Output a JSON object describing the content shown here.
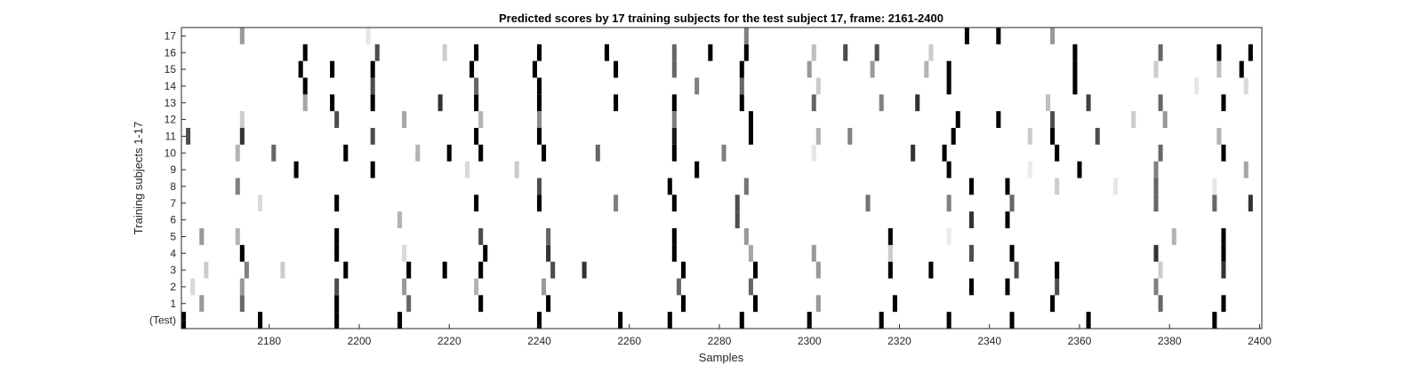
{
  "chart_data": {
    "type": "heatmap",
    "title": "Predicted scores by 17 training subjects for the test subject 17, frame: 2161-2400",
    "xlabel": "Samples",
    "ylabel": "Training subjects 1-17",
    "xlim": [
      2161,
      2400
    ],
    "x_ticks": [
      2180,
      2200,
      2220,
      2240,
      2260,
      2280,
      2300,
      2320,
      2340,
      2360,
      2380,
      2400
    ],
    "y_categories": [
      "(Test)",
      "1",
      "2",
      "3",
      "4",
      "5",
      "6",
      "7",
      "8",
      "9",
      "10",
      "11",
      "12",
      "13",
      "14",
      "15",
      "16",
      "17"
    ],
    "value_scale": "0 = white, 1 = black",
    "rows": [
      {
        "name": "(Test)",
        "marks": [
          [
            2161,
            1
          ],
          [
            2178,
            1
          ],
          [
            2195,
            1
          ],
          [
            2209,
            1
          ],
          [
            2240,
            1
          ],
          [
            2258,
            1
          ],
          [
            2269,
            1
          ],
          [
            2285,
            1
          ],
          [
            2300,
            1
          ],
          [
            2316,
            1
          ],
          [
            2331,
            1
          ],
          [
            2345,
            1
          ],
          [
            2362,
            1
          ],
          [
            2390,
            1
          ]
        ]
      },
      {
        "name": "1",
        "marks": [
          [
            2165,
            0.4
          ],
          [
            2174,
            0.6
          ],
          [
            2195,
            1
          ],
          [
            2211,
            0.6
          ],
          [
            2227,
            1
          ],
          [
            2242,
            1
          ],
          [
            2272,
            1
          ],
          [
            2288,
            1
          ],
          [
            2302,
            0.4
          ],
          [
            2319,
            1
          ],
          [
            2354,
            1
          ],
          [
            2378,
            0.6
          ],
          [
            2392,
            1
          ]
        ]
      },
      {
        "name": "2",
        "marks": [
          [
            2163,
            0.15
          ],
          [
            2174,
            0.4
          ],
          [
            2195,
            0.7
          ],
          [
            2210,
            0.4
          ],
          [
            2226,
            0.3
          ],
          [
            2241,
            0.4
          ],
          [
            2271,
            0.6
          ],
          [
            2287,
            0.6
          ],
          [
            2336,
            1
          ],
          [
            2344,
            1
          ],
          [
            2355,
            0.7
          ],
          [
            2377,
            0.5
          ]
        ]
      },
      {
        "name": "3",
        "marks": [
          [
            2166,
            0.2
          ],
          [
            2175,
            0.5
          ],
          [
            2183,
            0.2
          ],
          [
            2197,
            1
          ],
          [
            2211,
            1
          ],
          [
            2219,
            1
          ],
          [
            2227,
            1
          ],
          [
            2243,
            0.7
          ],
          [
            2250,
            0.8
          ],
          [
            2272,
            1
          ],
          [
            2288,
            1
          ],
          [
            2302,
            0.4
          ],
          [
            2318,
            1
          ],
          [
            2327,
            1
          ],
          [
            2346,
            0.7
          ],
          [
            2355,
            1
          ],
          [
            2378,
            0.2
          ],
          [
            2392,
            0.8
          ]
        ]
      },
      {
        "name": "4",
        "marks": [
          [
            2174,
            1
          ],
          [
            2195,
            1
          ],
          [
            2210,
            0.15
          ],
          [
            2228,
            1
          ],
          [
            2242,
            0.8
          ],
          [
            2270,
            1
          ],
          [
            2287,
            0.35
          ],
          [
            2301,
            0.4
          ],
          [
            2318,
            0.2
          ],
          [
            2336,
            0.7
          ],
          [
            2345,
            1
          ],
          [
            2377,
            0.8
          ],
          [
            2392,
            1
          ]
        ]
      },
      {
        "name": "5",
        "marks": [
          [
            2165,
            0.4
          ],
          [
            2173,
            0.3
          ],
          [
            2195,
            1
          ],
          [
            2227,
            0.7
          ],
          [
            2242,
            0.6
          ],
          [
            2270,
            1
          ],
          [
            2286,
            0.4
          ],
          [
            2318,
            1
          ],
          [
            2331,
            0.08
          ],
          [
            2381,
            0.3
          ],
          [
            2392,
            1
          ]
        ]
      },
      {
        "name": "6",
        "marks": [
          [
            2209,
            0.3
          ],
          [
            2284,
            0.7
          ],
          [
            2336,
            0.8
          ],
          [
            2344,
            1
          ]
        ]
      },
      {
        "name": "7",
        "marks": [
          [
            2178,
            0.15
          ],
          [
            2195,
            1
          ],
          [
            2226,
            1
          ],
          [
            2240,
            1
          ],
          [
            2257,
            0.5
          ],
          [
            2270,
            1
          ],
          [
            2284,
            0.7
          ],
          [
            2313,
            0.55
          ],
          [
            2331,
            0.5
          ],
          [
            2345,
            0.6
          ],
          [
            2377,
            0.6
          ],
          [
            2390,
            0.6
          ],
          [
            2398,
            0.8
          ]
        ]
      },
      {
        "name": "8",
        "marks": [
          [
            2173,
            0.5
          ],
          [
            2240,
            0.7
          ],
          [
            2269,
            1
          ],
          [
            2286,
            0.55
          ],
          [
            2336,
            1
          ],
          [
            2344,
            1
          ],
          [
            2355,
            0.2
          ],
          [
            2368,
            0.1
          ],
          [
            2377,
            0.6
          ],
          [
            2390,
            0.1
          ]
        ]
      },
      {
        "name": "9",
        "marks": [
          [
            2186,
            1
          ],
          [
            2203,
            1
          ],
          [
            2224,
            0.15
          ],
          [
            2235,
            0.2
          ],
          [
            2275,
            1
          ],
          [
            2331,
            1
          ],
          [
            2349,
            0.08
          ],
          [
            2360,
            1
          ],
          [
            2377,
            0.5
          ],
          [
            2397,
            0.35
          ]
        ]
      },
      {
        "name": "10",
        "marks": [
          [
            2173,
            0.3
          ],
          [
            2181,
            0.6
          ],
          [
            2197,
            1
          ],
          [
            2213,
            0.3
          ],
          [
            2220,
            1
          ],
          [
            2227,
            1
          ],
          [
            2241,
            1
          ],
          [
            2253,
            0.6
          ],
          [
            2270,
            1
          ],
          [
            2281,
            0.5
          ],
          [
            2301,
            0.1
          ],
          [
            2323,
            0.8
          ],
          [
            2330,
            1
          ],
          [
            2355,
            1
          ],
          [
            2378,
            0.6
          ],
          [
            2392,
            1
          ]
        ]
      },
      {
        "name": "11",
        "marks": [
          [
            2162,
            0.7
          ],
          [
            2174,
            0.8
          ],
          [
            2203,
            0.7
          ],
          [
            2226,
            1
          ],
          [
            2240,
            1
          ],
          [
            2270,
            0.9
          ],
          [
            2287,
            1
          ],
          [
            2302,
            0.3
          ],
          [
            2309,
            0.5
          ],
          [
            2332,
            1
          ],
          [
            2349,
            0.2
          ],
          [
            2354,
            1
          ],
          [
            2364,
            0.7
          ],
          [
            2391,
            0.3
          ]
        ]
      },
      {
        "name": "12",
        "marks": [
          [
            2174,
            0.2
          ],
          [
            2195,
            0.7
          ],
          [
            2210,
            0.35
          ],
          [
            2227,
            0.3
          ],
          [
            2240,
            0.45
          ],
          [
            2270,
            0.5
          ],
          [
            2287,
            1
          ],
          [
            2333,
            1
          ],
          [
            2342,
            1
          ],
          [
            2354,
            0.7
          ],
          [
            2372,
            0.2
          ],
          [
            2379,
            0.4
          ]
        ]
      },
      {
        "name": "13",
        "marks": [
          [
            2188,
            0.35
          ],
          [
            2194,
            1
          ],
          [
            2203,
            1
          ],
          [
            2218,
            0.8
          ],
          [
            2226,
            1
          ],
          [
            2240,
            1
          ],
          [
            2257,
            1
          ],
          [
            2270,
            1
          ],
          [
            2285,
            1
          ],
          [
            2301,
            0.6
          ],
          [
            2316,
            0.5
          ],
          [
            2324,
            0.8
          ],
          [
            2353,
            0.25
          ],
          [
            2362,
            0.75
          ],
          [
            2378,
            0.6
          ],
          [
            2392,
            1
          ]
        ]
      },
      {
        "name": "14",
        "marks": [
          [
            2188,
            1
          ],
          [
            2203,
            0.7
          ],
          [
            2226,
            0.6
          ],
          [
            2240,
            1
          ],
          [
            2275,
            0.5
          ],
          [
            2285,
            0.6
          ],
          [
            2302,
            0.2
          ],
          [
            2331,
            1
          ],
          [
            2359,
            1
          ],
          [
            2386,
            0.1
          ],
          [
            2397,
            0.15
          ]
        ]
      },
      {
        "name": "15",
        "marks": [
          [
            2187,
            1
          ],
          [
            2194,
            1
          ],
          [
            2203,
            1
          ],
          [
            2225,
            1
          ],
          [
            2239,
            1
          ],
          [
            2257,
            1
          ],
          [
            2270,
            0.6
          ],
          [
            2285,
            1
          ],
          [
            2300,
            0.4
          ],
          [
            2314,
            0.4
          ],
          [
            2326,
            0.3
          ],
          [
            2331,
            1
          ],
          [
            2359,
            1
          ],
          [
            2377,
            0.2
          ],
          [
            2391,
            0.25
          ],
          [
            2396,
            1
          ]
        ]
      },
      {
        "name": "16",
        "marks": [
          [
            2188,
            1
          ],
          [
            2204,
            0.7
          ],
          [
            2219,
            0.2
          ],
          [
            2226,
            1
          ],
          [
            2240,
            1
          ],
          [
            2255,
            1
          ],
          [
            2270,
            0.6
          ],
          [
            2278,
            1
          ],
          [
            2286,
            1
          ],
          [
            2301,
            0.25
          ],
          [
            2308,
            0.7
          ],
          [
            2315,
            0.7
          ],
          [
            2327,
            0.2
          ],
          [
            2359,
            1
          ],
          [
            2378,
            0.6
          ],
          [
            2391,
            1
          ],
          [
            2398,
            1
          ]
        ]
      },
      {
        "name": "17",
        "marks": [
          [
            2174,
            0.4
          ],
          [
            2202,
            0.1
          ],
          [
            2286,
            0.5
          ],
          [
            2335,
            1
          ],
          [
            2342,
            1
          ],
          [
            2354,
            0.4
          ]
        ]
      }
    ]
  }
}
